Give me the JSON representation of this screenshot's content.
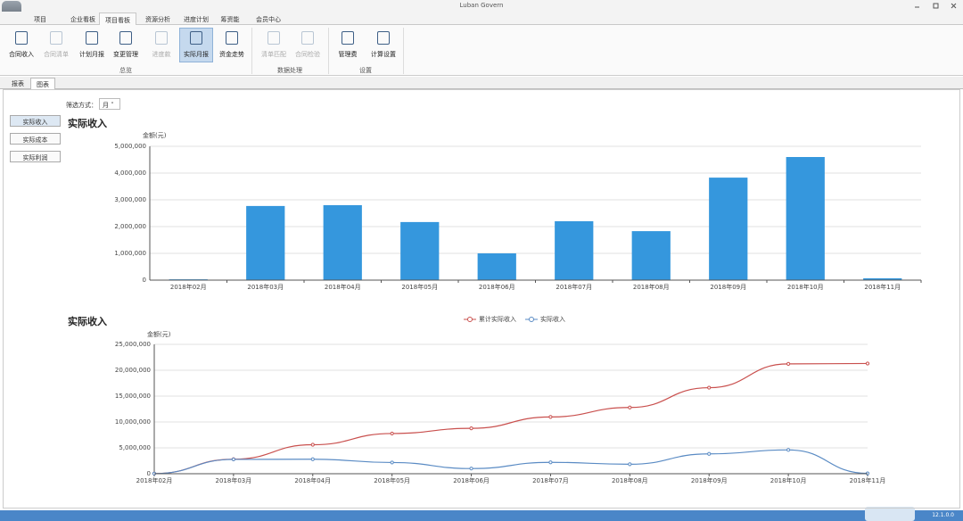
{
  "window": {
    "title": "Luban Govern"
  },
  "menu_tabs": [
    {
      "label": "项目"
    },
    {
      "label": "企业看板"
    },
    {
      "label": "项目看板",
      "active": true
    },
    {
      "label": "资源分析"
    },
    {
      "label": "进度计划"
    },
    {
      "label": "筹资能"
    },
    {
      "label": "会员中心"
    }
  ],
  "ribbon": [
    {
      "label": "总览",
      "buttons": [
        {
          "label": "合同收入"
        },
        {
          "label": "合同清单",
          "disabled": true
        },
        {
          "label": "计划月报"
        },
        {
          "label": "变更管理"
        },
        {
          "label": "进度款",
          "disabled": true
        },
        {
          "label": "实际月报",
          "active": true
        },
        {
          "label": "资金走势"
        }
      ]
    },
    {
      "label": "数据处理",
      "buttons": [
        {
          "label": "清单匹配",
          "disabled": true
        },
        {
          "label": "合同检验",
          "disabled": true
        }
      ]
    },
    {
      "label": "设置",
      "buttons": [
        {
          "label": "管理费"
        },
        {
          "label": "计算设置"
        }
      ]
    }
  ],
  "view_tabs": [
    {
      "label": "报表"
    },
    {
      "label": "图表",
      "active": true
    }
  ],
  "filter": {
    "label": "筛选方式：",
    "value": "月"
  },
  "side_buttons": [
    {
      "label": "实际收入",
      "active": true
    },
    {
      "label": "实际成本"
    },
    {
      "label": "实际利润"
    }
  ],
  "chart_data": [
    {
      "type": "bar",
      "title": "实际收入",
      "y_label": "金额(元)",
      "color": "#3597dd",
      "categories": [
        "2018年02月",
        "2018年03月",
        "2018年04月",
        "2018年05月",
        "2018年06月",
        "2018年07月",
        "2018年08月",
        "2018年09月",
        "2018年10月",
        "2018年11月"
      ],
      "values": [
        30000,
        2770000,
        2800000,
        2170000,
        1000000,
        2200000,
        1830000,
        3830000,
        4600000,
        70000
      ],
      "ylim": [
        0,
        5000000
      ],
      "yticks": [
        0,
        {
          "value": 1000000,
          "label": "1,000,000"
        },
        {
          "value": 2000000,
          "label": "2,000,000"
        },
        {
          "value": 3000000,
          "label": "3,000,000"
        },
        {
          "value": 4000000,
          "label": "4,000,000"
        },
        {
          "value": 5000000,
          "label": "5,000,000"
        }
      ],
      "grid": true
    },
    {
      "type": "line",
      "title": "实际收入",
      "y_label": "金额(元)",
      "legend": "top",
      "categories": [
        "2018年02月",
        "2018年03月",
        "2018年04月",
        "2018年05月",
        "2018年06月",
        "2018年07月",
        "2018年08月",
        "2018年09月",
        "2018年10月",
        "2018年11月"
      ],
      "series": [
        {
          "name": "累计实际收入",
          "color": "#c9504e",
          "values": [
            30000,
            2800000,
            5600000,
            7770000,
            8770000,
            10970000,
            12800000,
            16630000,
            21230000,
            21300000
          ]
        },
        {
          "name": "实际收入",
          "color": "#5a8bc4",
          "values": [
            30000,
            2770000,
            2800000,
            2170000,
            1000000,
            2200000,
            1830000,
            3830000,
            4600000,
            70000
          ]
        }
      ],
      "ylim": [
        0,
        25000000
      ],
      "yticks": [
        0,
        {
          "value": 5000000,
          "label": "5,000,000"
        },
        {
          "value": 10000000,
          "label": "10,000,000"
        },
        {
          "value": 15000000,
          "label": "15,000,000"
        },
        {
          "value": 20000000,
          "label": "20,000,000"
        },
        {
          "value": 25000000,
          "label": "25,000,000"
        }
      ],
      "grid": true
    }
  ],
  "status": {
    "version": "12.1.0.0"
  }
}
